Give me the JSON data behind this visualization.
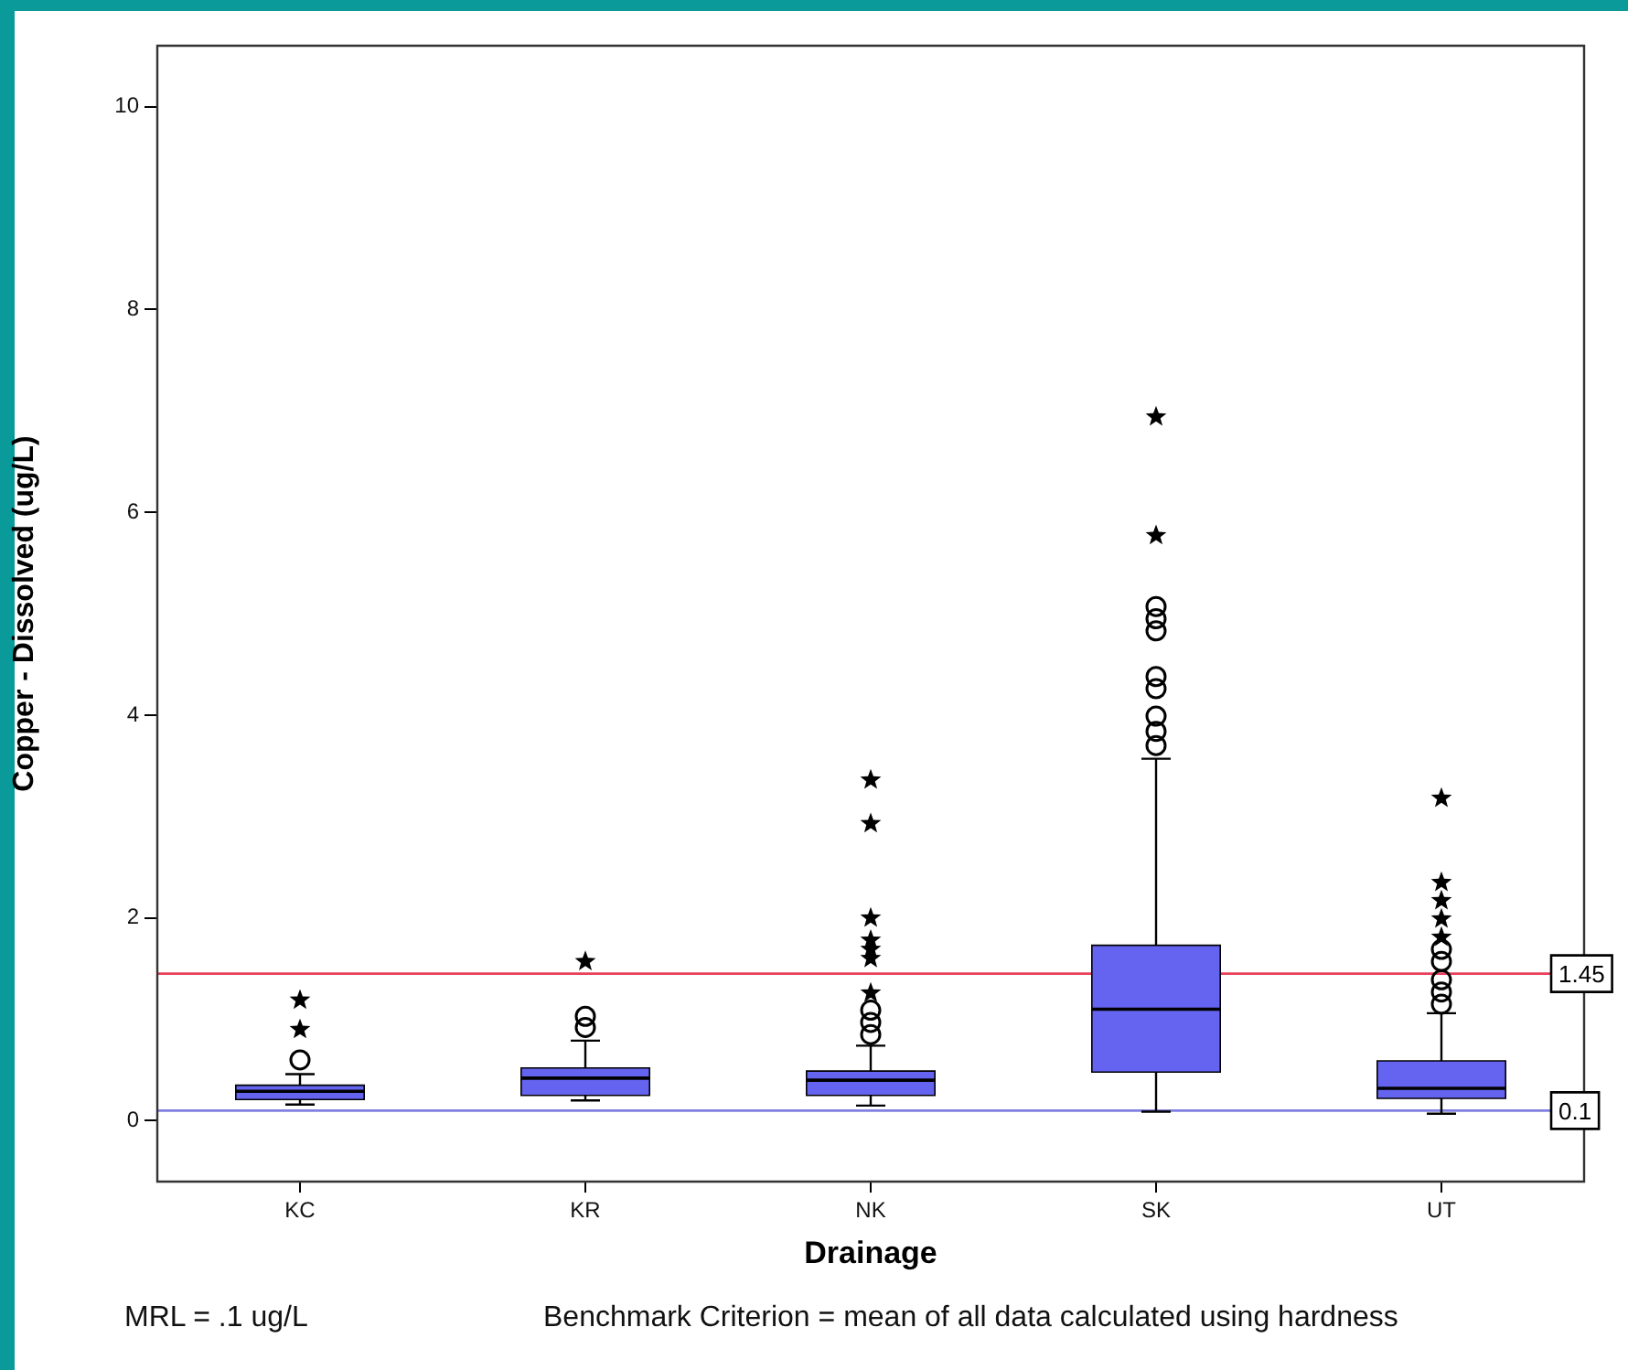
{
  "chart_data": {
    "type": "box",
    "xlabel": "Drainage",
    "ylabel": "Copper - Dissolved (ug/L)",
    "categories": [
      "KC",
      "KR",
      "NK",
      "SK",
      "UT"
    ],
    "color": "#6464f0",
    "marker": "circle",
    "boxes": [
      {
        "low": 0.16,
        "q1": 0.21,
        "median": 0.29,
        "q3": 0.35,
        "high": 0.46,
        "outliers": [
          0.6
        ]
      },
      {
        "low": 0.2,
        "q1": 0.25,
        "median": 0.42,
        "q3": 0.52,
        "high": 0.79,
        "outliers": [
          0.92,
          1.03
        ]
      },
      {
        "low": 0.15,
        "q1": 0.25,
        "median": 0.4,
        "q3": 0.49,
        "high": 0.74,
        "outliers": [
          0.85,
          0.97,
          1.09
        ]
      },
      {
        "low": 0.09,
        "q1": 0.48,
        "median": 1.1,
        "q3": 1.73,
        "high": 3.57,
        "outliers": [
          3.7,
          3.84,
          3.99,
          4.26,
          4.38,
          4.83,
          4.95,
          5.07
        ]
      },
      {
        "low": 0.07,
        "q1": 0.22,
        "median": 0.32,
        "q3": 0.59,
        "high": 1.06,
        "outliers": [
          1.15,
          1.27,
          1.39,
          1.57,
          1.69
        ]
      }
    ],
    "series": [
      {
        "type": "scatter",
        "marker": "star",
        "color": "#000000",
        "x": [
          "KC",
          "KC",
          "KR",
          "NK",
          "NK",
          "NK",
          "NK",
          "NK",
          "NK",
          "NK",
          "SK",
          "SK",
          "SK",
          "UT",
          "UT",
          "UT",
          "UT",
          "UT"
        ],
        "values": [
          0.9,
          1.19,
          1.57,
          1.26,
          1.6,
          1.69,
          1.78,
          2.0,
          2.93,
          3.36,
          null,
          5.77,
          6.94,
          1.81,
          1.99,
          2.17,
          2.35,
          3.18
        ]
      }
    ],
    "ylim": [
      -0.6,
      10.6
    ],
    "yticks": [
      0,
      2,
      4,
      6,
      8,
      10
    ],
    "ref_lines": [
      {
        "axis": "y",
        "value": 1.45,
        "label": "1.45",
        "color": "#e8405a"
      },
      {
        "axis": "y",
        "value": 0.1,
        "label": "0.1",
        "color": "#8080e0"
      }
    ],
    "annotations": [
      "MRL = .1 ug/L",
      "Benchmark Criterion = mean of all data calculated using hardness"
    ]
  }
}
